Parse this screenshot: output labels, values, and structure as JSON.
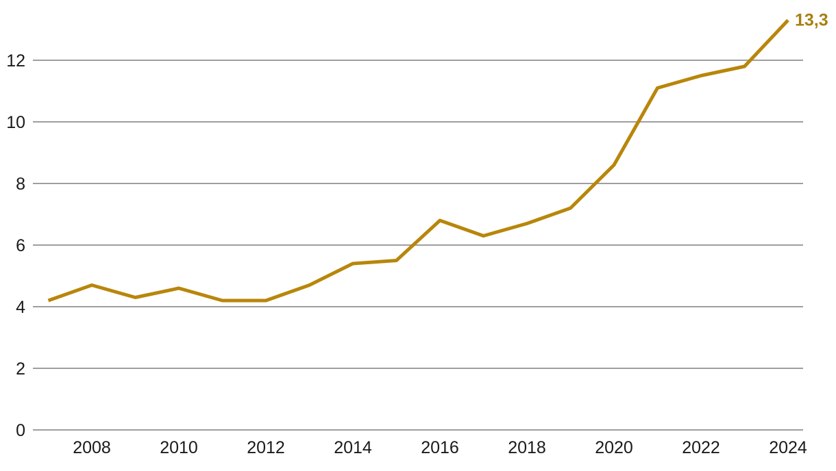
{
  "chart_data": {
    "type": "line",
    "title": "",
    "xlabel": "",
    "ylabel": "",
    "x": [
      2007,
      2008,
      2009,
      2010,
      2011,
      2012,
      2013,
      2014,
      2015,
      2016,
      2017,
      2018,
      2019,
      2020,
      2021,
      2022,
      2023,
      2024
    ],
    "values": [
      4.2,
      4.7,
      4.3,
      4.6,
      4.2,
      4.2,
      4.7,
      5.4,
      5.5,
      6.8,
      6.3,
      6.7,
      7.2,
      8.6,
      11.1,
      11.5,
      11.8,
      13.3
    ],
    "series": [
      {
        "name": "value",
        "values": [
          4.2,
          4.7,
          4.3,
          4.6,
          4.2,
          4.2,
          4.7,
          5.4,
          5.5,
          6.8,
          6.3,
          6.7,
          7.2,
          8.6,
          11.1,
          11.5,
          11.8,
          13.3
        ]
      }
    ],
    "end_value_label": "13,3",
    "decimal_separator": ",",
    "y_ticks": [
      {
        "value": 0,
        "label": "0"
      },
      {
        "value": 2,
        "label": "2"
      },
      {
        "value": 4,
        "label": "4"
      },
      {
        "value": 6,
        "label": "6"
      },
      {
        "value": 8,
        "label": "8"
      },
      {
        "value": 10,
        "label": "10"
      },
      {
        "value": 12,
        "label": "12"
      }
    ],
    "x_ticks": [
      {
        "year": 2008,
        "label": "2008"
      },
      {
        "year": 2010,
        "label": "2010"
      },
      {
        "year": 2012,
        "label": "2012"
      },
      {
        "year": 2014,
        "label": "2014"
      },
      {
        "year": 2016,
        "label": "2016"
      },
      {
        "year": 2018,
        "label": "2018"
      },
      {
        "year": 2020,
        "label": "2020"
      },
      {
        "year": 2022,
        "label": "2022"
      },
      {
        "year": 2024,
        "label": "2024"
      }
    ],
    "ylim": [
      0,
      13.5
    ],
    "xlim": [
      2007,
      2024
    ],
    "grid": "horizontal",
    "legend_position": "none"
  },
  "colors": {
    "line": "#b8860b",
    "end_label": "#a87f10",
    "gridline": "#9e9e9e",
    "tick_text": "#1a1a1a",
    "background": "#ffffff"
  }
}
